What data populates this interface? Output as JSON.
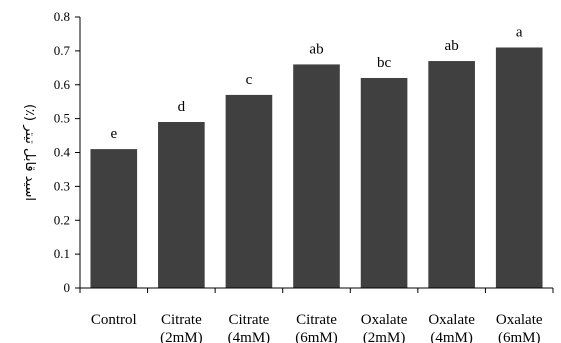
{
  "chart_data": {
    "type": "bar",
    "title": "",
    "xlabel": "",
    "ylabel": "(٪) اسید قابل تیتر",
    "ylim": [
      0,
      0.8
    ],
    "yticks": [
      "0",
      "0.1",
      "0.2",
      "0.3",
      "0.4",
      "0.5",
      "0.6",
      "0.7",
      "0.8"
    ],
    "grid": false,
    "bar_color": "#404040",
    "categories": [
      {
        "line1": "Control",
        "line2": ""
      },
      {
        "line1": "Citrate",
        "line2": "(2mM)"
      },
      {
        "line1": "Citrate",
        "line2": "(4mM)"
      },
      {
        "line1": "Citrate",
        "line2": "(6mM)"
      },
      {
        "line1": "Oxalate",
        "line2": "(2mM)"
      },
      {
        "line1": "Oxalate",
        "line2": "(4mM)"
      },
      {
        "line1": "Oxalate",
        "line2": "(6mM)"
      }
    ],
    "values": [
      0.41,
      0.49,
      0.57,
      0.66,
      0.62,
      0.67,
      0.71
    ],
    "annotations": [
      "e",
      "d",
      "c",
      "ab",
      "bc",
      "ab",
      "a"
    ]
  }
}
